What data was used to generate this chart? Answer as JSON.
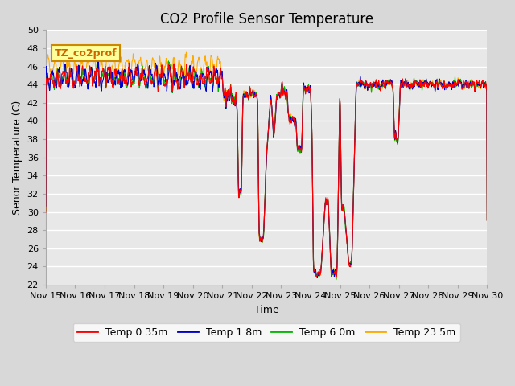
{
  "title": "CO2 Profile Sensor Temperature",
  "ylabel": "Senor Temperature (C)",
  "xlabel": "Time",
  "annotation": "TZ_co2prof",
  "ylim": [
    22,
    50
  ],
  "yticks": [
    22,
    24,
    26,
    28,
    30,
    32,
    34,
    36,
    38,
    40,
    42,
    44,
    46,
    48,
    50
  ],
  "xtick_labels": [
    "Nov 15",
    "Nov 16",
    "Nov 17",
    "Nov 18",
    "Nov 19",
    "Nov 20",
    "Nov 21",
    "Nov 22",
    "Nov 23",
    "Nov 24",
    "Nov 25",
    "Nov 26",
    "Nov 27",
    "Nov 28",
    "Nov 29",
    "Nov 30"
  ],
  "legend_labels": [
    "Temp 0.35m",
    "Temp 1.8m",
    "Temp 6.0m",
    "Temp 23.5m"
  ],
  "colors": [
    "#ff0000",
    "#0000cc",
    "#00bb00",
    "#ffaa00"
  ],
  "plot_bg_color": "#e8e8e8",
  "fig_bg_color": "#d8d8d8",
  "grid_color": "#ffffff",
  "annotation_bg": "#ffff99",
  "annotation_border": "#cc8800",
  "title_fontsize": 12,
  "label_fontsize": 9,
  "tick_fontsize": 8
}
